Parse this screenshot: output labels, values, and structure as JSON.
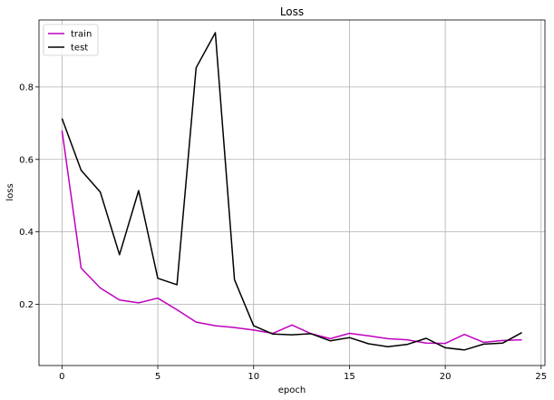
{
  "chart_data": {
    "type": "line",
    "title": "Loss",
    "xlabel": "epoch",
    "ylabel": "loss",
    "xlim": [
      -1.2,
      25.2
    ],
    "ylim": [
      0.031,
      0.985
    ],
    "xticks": [
      0,
      5,
      10,
      15,
      20,
      25
    ],
    "yticks": [
      0.2,
      0.4,
      0.6,
      0.8
    ],
    "ytick_labels": [
      "0.2",
      "0.4",
      "0.6",
      "0.8"
    ],
    "grid": true,
    "legend_position": "top-left",
    "x": [
      0,
      1,
      2,
      3,
      4,
      5,
      6,
      7,
      8,
      9,
      10,
      11,
      12,
      13,
      14,
      15,
      16,
      17,
      18,
      19,
      20,
      21,
      22,
      23,
      24
    ],
    "series": [
      {
        "name": "train",
        "color": "#bf00bf",
        "values": [
          0.68,
          0.3,
          0.245,
          0.212,
          0.204,
          0.217,
          0.185,
          0.151,
          0.141,
          0.136,
          0.129,
          0.12,
          0.143,
          0.119,
          0.105,
          0.12,
          0.113,
          0.105,
          0.102,
          0.093,
          0.092,
          0.117,
          0.095,
          0.1,
          0.102
        ]
      },
      {
        "name": "test",
        "color": "#000000",
        "values": [
          0.713,
          0.57,
          0.51,
          0.337,
          0.514,
          0.272,
          0.254,
          0.853,
          0.95,
          0.268,
          0.141,
          0.118,
          0.116,
          0.119,
          0.099,
          0.108,
          0.091,
          0.083,
          0.089,
          0.106,
          0.08,
          0.074,
          0.09,
          0.093,
          0.122
        ]
      }
    ]
  }
}
